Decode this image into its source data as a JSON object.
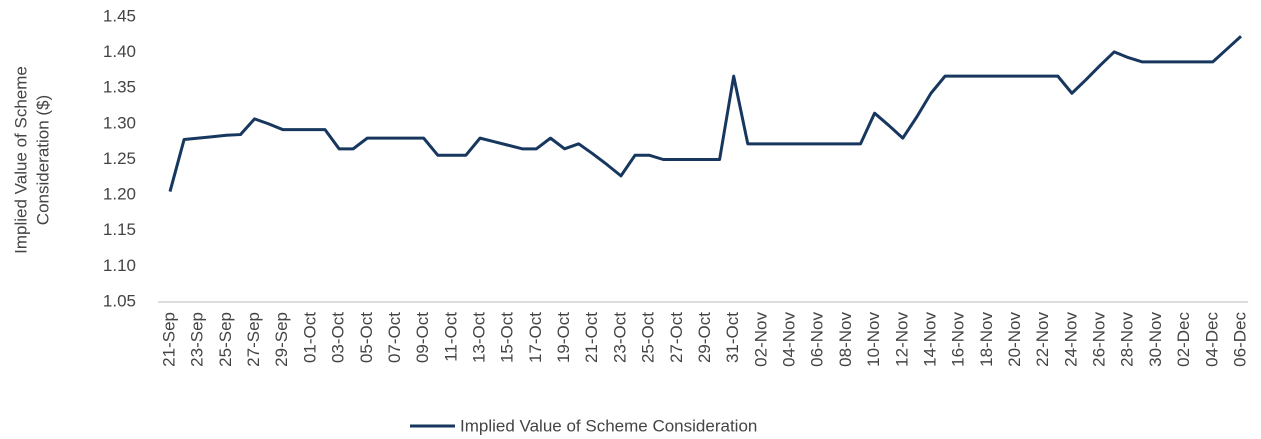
{
  "chart_data": {
    "type": "line",
    "y_label": [
      "Implied Value of Scheme",
      "Consideration ($)"
    ],
    "categories": [
      "21-Sep",
      null,
      "23-Sep",
      null,
      "25-Sep",
      null,
      "27-Sep",
      null,
      "29-Sep",
      null,
      "01-Oct",
      null,
      "03-Oct",
      null,
      "05-Oct",
      null,
      "07-Oct",
      null,
      "09-Oct",
      null,
      "11-Oct",
      null,
      "13-Oct",
      null,
      "15-Oct",
      null,
      "17-Oct",
      null,
      "19-Oct",
      null,
      "21-Oct",
      null,
      "23-Oct",
      null,
      "25-Oct",
      null,
      "27-Oct",
      null,
      "29-Oct",
      null,
      "31-Oct",
      null,
      "02-Nov",
      null,
      "04-Nov",
      null,
      "06-Nov",
      null,
      "08-Nov",
      null,
      "10-Nov",
      null,
      "12-Nov",
      null,
      "14-Nov",
      null,
      "16-Nov",
      null,
      "18-Nov",
      null,
      "20-Nov",
      null,
      "22-Nov",
      null,
      "24-Nov",
      null,
      "26-Nov",
      null,
      "28-Nov",
      null,
      "30-Nov",
      null,
      "02-Dec",
      null,
      "04-Dec",
      null,
      "06-Dec"
    ],
    "series": [
      {
        "name": "Implied Value of Scheme Consideration",
        "color": "#17375e",
        "values": [
          1.205,
          1.278,
          1.28,
          1.282,
          1.284,
          1.285,
          1.307,
          1.3,
          1.292,
          1.292,
          1.292,
          1.292,
          1.265,
          1.265,
          1.28,
          1.28,
          1.28,
          1.28,
          1.28,
          1.256,
          1.256,
          1.256,
          1.28,
          1.275,
          1.27,
          1.265,
          1.265,
          1.28,
          1.265,
          1.272,
          1.258,
          1.243,
          1.227,
          1.256,
          1.256,
          1.25,
          1.25,
          1.25,
          1.25,
          1.25,
          1.367,
          1.272,
          1.272,
          1.272,
          1.272,
          1.272,
          1.272,
          1.272,
          1.272,
          1.272,
          1.315,
          1.298,
          1.28,
          1.31,
          1.343,
          1.367,
          1.367,
          1.367,
          1.367,
          1.367,
          1.367,
          1.367,
          1.367,
          1.367,
          1.343,
          1.362,
          1.382,
          1.401,
          1.393,
          1.387,
          1.387,
          1.387,
          1.387,
          1.387,
          1.387,
          1.405,
          1.423
        ]
      }
    ],
    "ylim": [
      1.05,
      1.45
    ],
    "yticks": [
      1.05,
      {
        "value": 1.1,
        "label": "1.10"
      },
      1.15,
      {
        "value": 1.2,
        "label": "1.20"
      },
      1.25,
      {
        "value": 1.3,
        "label": "1.30"
      },
      1.35,
      {
        "value": 1.4,
        "label": "1.40"
      },
      1.45
    ],
    "grid": false,
    "legend": "bottom"
  }
}
